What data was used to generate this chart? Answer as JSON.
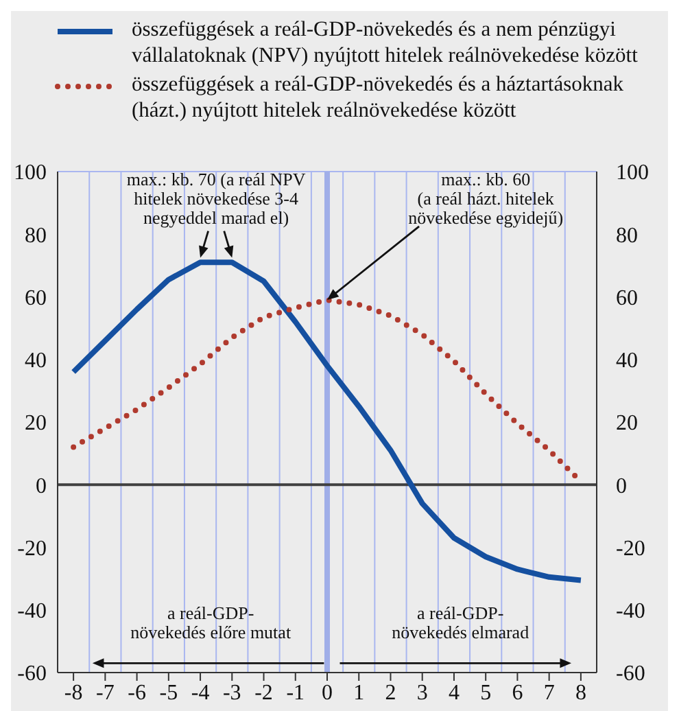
{
  "chart_data": {
    "type": "line",
    "categories": [
      "-8",
      "-7",
      "-6",
      "-5",
      "-4",
      "-3",
      "-2",
      "-1",
      "0",
      "1",
      "2",
      "3",
      "4",
      "5",
      "6",
      "7",
      "8"
    ],
    "series": [
      {
        "name": "összefüggések a reál-GDP-növekedés és a nem pénzügyi vállalatoknak (NPV) nyújtott hitelek reálnövekedése között",
        "color": "#1550a0",
        "line_style": "solid",
        "values": [
          36,
          46,
          56,
          65.5,
          71,
          71,
          65,
          52,
          38,
          25,
          11,
          -6,
          -17,
          -23,
          -27,
          -29.5,
          -30.5
        ]
      },
      {
        "name": "összefüggések a reál-GDP-növekedés és a háztartásoknak (házt.) nyújtott hitelek reálnövekedése között",
        "color": "#b03a2e",
        "line_style": "dotted",
        "values": [
          12,
          18,
          24,
          31,
          38.5,
          47,
          53.5,
          56.5,
          59,
          57.5,
          54,
          48,
          39.5,
          29,
          19.5,
          11,
          1
        ]
      }
    ],
    "ylim": [
      -60,
      100
    ],
    "yticks": [
      -60,
      -40,
      -20,
      0,
      20,
      40,
      60,
      80,
      100
    ],
    "y2lim": [
      -60,
      100
    ],
    "y2ticks": [
      -60,
      -40,
      -20,
      0,
      20,
      40,
      60,
      80,
      100
    ],
    "grid": true,
    "legend": "top",
    "marker": "none",
    "ref_lines": [
      {
        "axis": "x",
        "value": "0",
        "color": "#a0aee8"
      },
      {
        "axis": "y",
        "value": 0,
        "color": "#404040"
      }
    ],
    "annotations": [
      "max.: kb. 70 (a reál NPV\nhitelek növekedése 3-4\nnegyeddel marad el)",
      {
        "text": "max.: kb. 60\n(a reál házt. hitelek\nnövekedése egyidejű)",
        "x": "0",
        "y": 59
      },
      "a reál-GDP-\nnövekedés előre mutat",
      "a reál-GDP-\nnövekedés elmarad"
    ]
  }
}
